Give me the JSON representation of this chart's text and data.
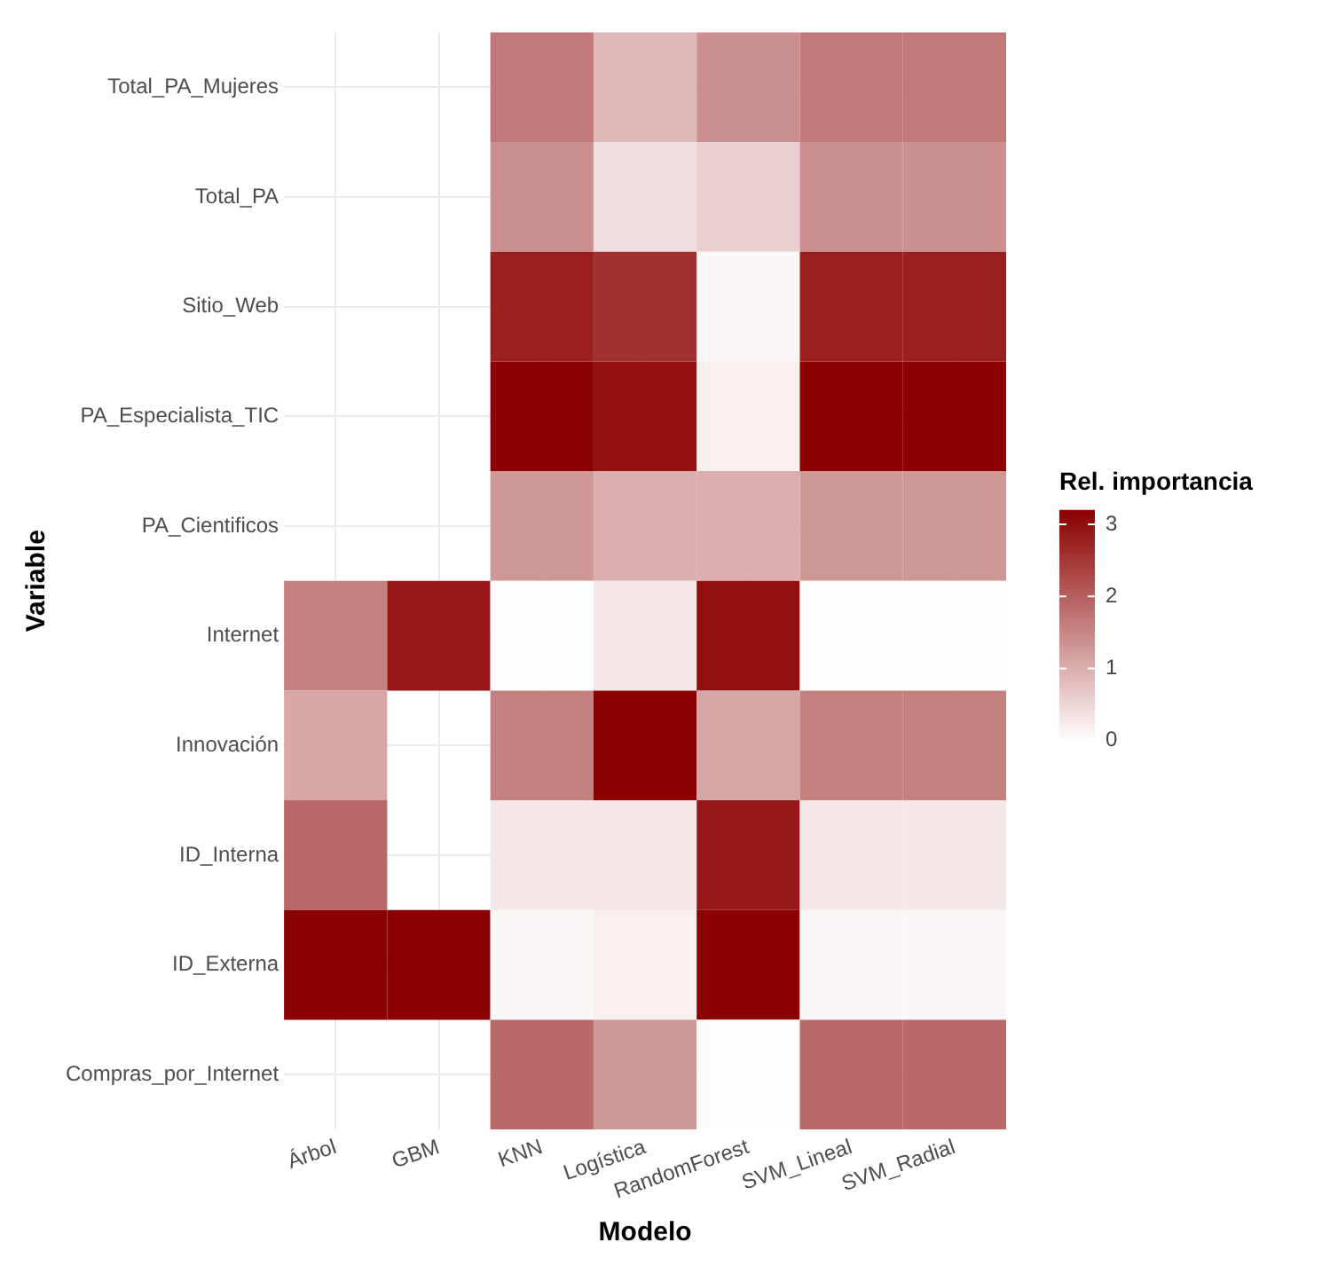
{
  "chart_data": {
    "type": "heatmap",
    "xlabel": "Modelo",
    "ylabel": "Variable",
    "clabel": "Rel. importancia",
    "categories": [
      "Árbol",
      "GBM",
      "KNN",
      "Logística",
      "RandomForest",
      "SVM_Lineal",
      "SVM_Radial"
    ],
    "y_categories": [
      "Total_PA_Mujeres",
      "Total_PA",
      "Sitio_Web",
      "PA_Especialista_TIC",
      "PA_Cientificos",
      "Internet",
      "Innovación",
      "ID_Interna",
      "ID_Externa",
      "Compras_por_Internet"
    ],
    "cells": [
      [
        null,
        null,
        1.7,
        0.9,
        1.4,
        1.7,
        1.7
      ],
      [
        null,
        null,
        1.4,
        0.4,
        0.6,
        1.4,
        1.4
      ],
      [
        null,
        null,
        2.8,
        2.6,
        0.1,
        2.8,
        2.8
      ],
      [
        null,
        null,
        3.2,
        3.0,
        0.2,
        3.2,
        3.2
      ],
      [
        null,
        null,
        1.3,
        1.0,
        1.0,
        1.3,
        1.3
      ],
      [
        1.6,
        2.9,
        0.02,
        0.3,
        3.0,
        0.02,
        0.02
      ],
      [
        1.1,
        null,
        1.6,
        3.2,
        1.1,
        1.6,
        1.6
      ],
      [
        1.9,
        null,
        0.3,
        0.3,
        2.9,
        0.3,
        0.3
      ],
      [
        3.2,
        3.2,
        0.1,
        0.2,
        3.2,
        0.1,
        0.1
      ],
      [
        null,
        null,
        1.9,
        1.3,
        0.02,
        1.9,
        1.9
      ]
    ],
    "colors": [
      "#ffffff",
      "#8b0000"
    ],
    "clim": [
      0,
      3.2
    ],
    "cticks": [
      0,
      1,
      2,
      3
    ],
    "grid": true
  }
}
